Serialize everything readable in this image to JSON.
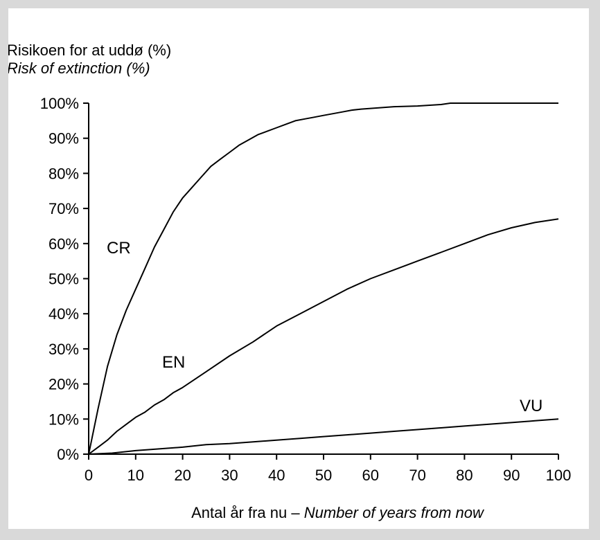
{
  "chart_data": {
    "type": "line",
    "ylabel": "Risikoen for at uddø (%)",
    "ylabel_en": "Risk of extinction (%)",
    "xlabel": "Antal år fra nu – ",
    "xlabel_en": "Number of years from now",
    "xlim": [
      0,
      100
    ],
    "ylim": [
      0,
      100
    ],
    "x_ticks": [
      0,
      10,
      20,
      30,
      40,
      50,
      60,
      70,
      80,
      90,
      100
    ],
    "x_tick_labels": [
      "0",
      "10",
      "20",
      "30",
      "40",
      "50",
      "60",
      "70",
      "80",
      "90",
      "100"
    ],
    "y_ticks": [
      0,
      10,
      20,
      30,
      40,
      50,
      60,
      70,
      80,
      90,
      100
    ],
    "y_tick_labels": [
      "0%",
      "10%",
      "20%",
      "30%",
      "40%",
      "50%",
      "60%",
      "70%",
      "80%",
      "90%",
      "100%"
    ],
    "grid": false,
    "series": [
      {
        "name": "CR",
        "x": [
          0,
          2,
          4,
          6,
          8,
          10,
          12,
          14,
          16,
          18,
          20,
          22,
          24,
          26,
          28,
          30,
          32,
          34,
          36,
          38,
          40,
          42,
          44,
          46,
          48,
          50,
          52,
          54,
          56,
          58,
          60,
          65,
          70,
          75,
          77,
          80,
          85,
          90,
          95,
          100
        ],
        "y": [
          0,
          13,
          25,
          34,
          41,
          47,
          53,
          59,
          64,
          69,
          73,
          76,
          79,
          82,
          84,
          86,
          88,
          89.5,
          91,
          92,
          93,
          94,
          95,
          95.5,
          96,
          96.5,
          97,
          97.5,
          98,
          98.3,
          98.5,
          99,
          99.2,
          99.6,
          100,
          100,
          100,
          100,
          100,
          100
        ]
      },
      {
        "name": "EN",
        "x": [
          0,
          2,
          4,
          6,
          8,
          10,
          12,
          14,
          16,
          18,
          20,
          25,
          30,
          35,
          40,
          45,
          50,
          55,
          60,
          65,
          70,
          75,
          80,
          85,
          90,
          95,
          100
        ],
        "y": [
          0,
          2,
          4,
          6.5,
          8.5,
          10.5,
          12,
          14,
          15.5,
          17.5,
          19,
          23.5,
          28,
          32,
          36.5,
          40,
          43.5,
          47,
          50,
          52.5,
          55,
          57.5,
          60,
          62.5,
          64.5,
          66,
          67
        ]
      },
      {
        "name": "VU",
        "x": [
          0,
          5,
          10,
          15,
          20,
          25,
          30,
          35,
          40,
          45,
          50,
          55,
          60,
          65,
          70,
          75,
          80,
          85,
          90,
          95,
          100
        ],
        "y": [
          0,
          0.3,
          1,
          1.5,
          2,
          2.7,
          3,
          3.5,
          4,
          4.5,
          5,
          5.5,
          6,
          6.5,
          7,
          7.5,
          8,
          8.5,
          9,
          9.5,
          10
        ]
      }
    ]
  }
}
